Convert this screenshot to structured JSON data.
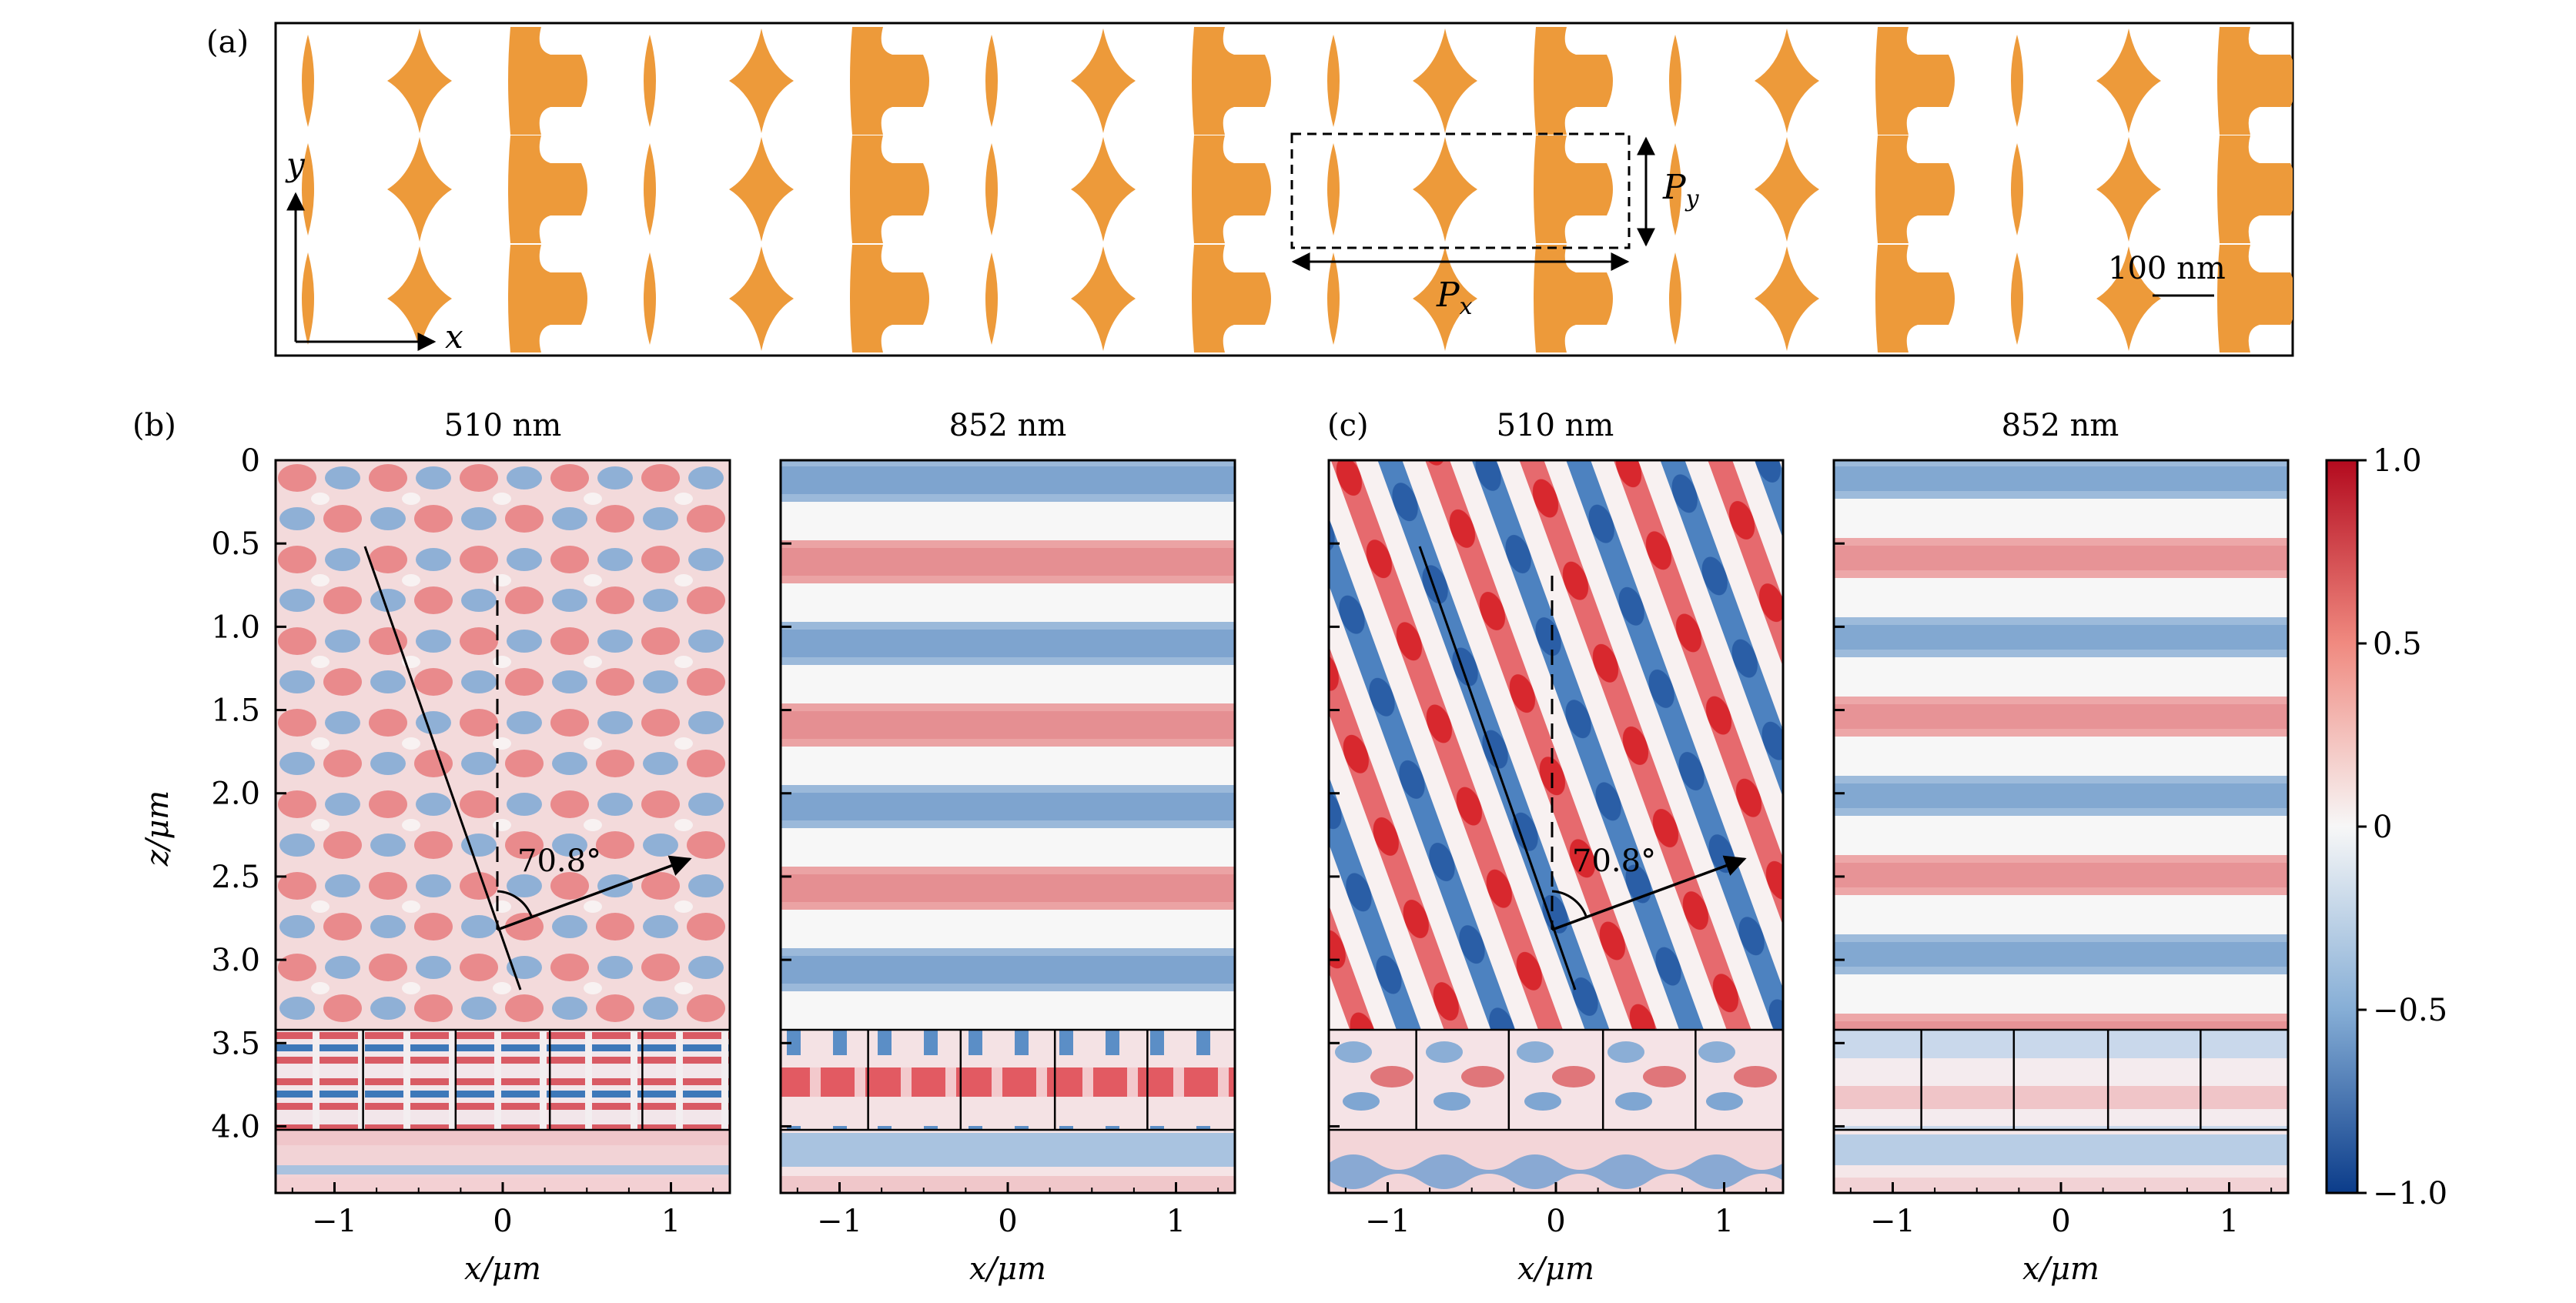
{
  "figure": {
    "panel_a": {
      "label": "(a)",
      "axis_y": "y",
      "axis_x": "x",
      "py_main": "P",
      "py_sub": "y",
      "px_main": "P",
      "px_sub": "x",
      "scale_bar": "100 nm",
      "fill_color": "#ED9A3A"
    },
    "panel_b": {
      "label": "(b)",
      "left_title": "510 nm",
      "right_title": "852 nm",
      "angle": "70.8°"
    },
    "panel_c": {
      "label": "(c)",
      "left_title": "510 nm",
      "right_title": "852 nm",
      "angle": "70.8°"
    },
    "x_axis_label": "x/μm",
    "z_axis_label": "z/μm",
    "x_ticks": [
      "−1",
      "0",
      "1"
    ],
    "z_ticks": [
      "4.0",
      "3.5",
      "3.0",
      "2.5",
      "2.0",
      "1.5",
      "1.0",
      "0.5",
      "0"
    ],
    "colorbar": {
      "ticks": [
        "1.0",
        "0.5",
        "0",
        "−0.5",
        "−1.0"
      ],
      "positive_color": "#D7191C",
      "negative_color": "#1F5FA8"
    }
  },
  "chart_data": [
    {
      "type": "heatmap",
      "title": "510 nm",
      "xlabel": "x/μm",
      "ylabel": "z/μm",
      "xlim": [
        -1.35,
        1.35
      ],
      "ylim": [
        -0.4,
        4.0
      ],
      "xticks": [
        -1,
        0,
        1
      ],
      "zticks": [
        0,
        0.5,
        1.0,
        1.5,
        2.0,
        2.5,
        3.0,
        3.5,
        4.0
      ],
      "annotation": "70.8°"
    },
    {
      "type": "heatmap",
      "title": "852 nm",
      "xlabel": "x/μm",
      "xlim": [
        -1.35,
        1.35
      ],
      "ylim": [
        -0.4,
        4.0
      ],
      "xticks": [
        -1,
        0,
        1
      ]
    },
    {
      "type": "heatmap",
      "title": "510 nm",
      "xlabel": "x/μm",
      "xlim": [
        -1.35,
        1.35
      ],
      "ylim": [
        -0.4,
        4.0
      ],
      "xticks": [
        -1,
        0,
        1
      ],
      "annotation": "70.8°"
    },
    {
      "type": "heatmap",
      "title": "852 nm",
      "xlabel": "x/μm",
      "xlim": [
        -1.35,
        1.35
      ],
      "ylim": [
        -0.4,
        4.0
      ],
      "xticks": [
        -1,
        0,
        1
      ]
    },
    {
      "type": "colorbar",
      "range": [
        -1.0,
        1.0
      ],
      "ticks": [
        1.0,
        0.5,
        0,
        -0.5,
        -1.0
      ]
    }
  ]
}
